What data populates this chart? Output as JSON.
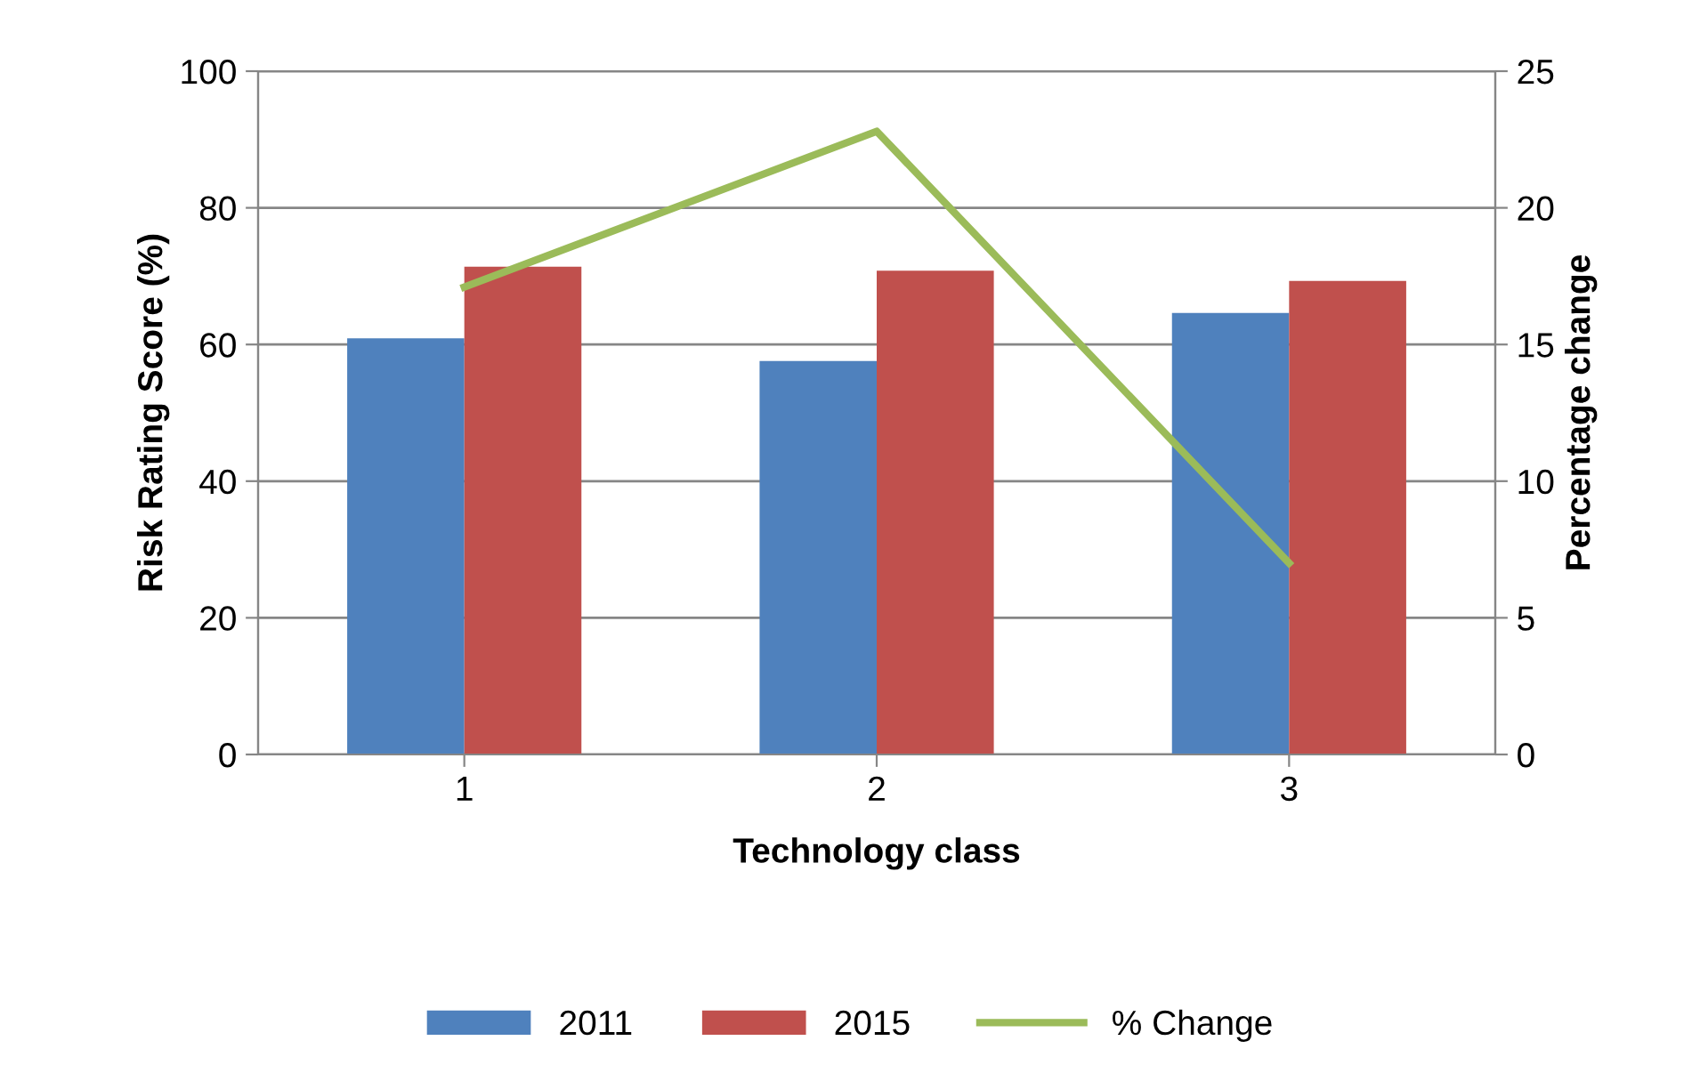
{
  "chart_data": {
    "type": "bar",
    "xlabel": "Technology class",
    "ylabel": "Risk Rating Score (%)",
    "y2label": "Percentage change",
    "categories": [
      "1",
      "2",
      "3"
    ],
    "series": [
      {
        "name": "2011",
        "color": "#4f81bd",
        "values": [
          60.9,
          57.6,
          64.6
        ]
      },
      {
        "name": "2015",
        "color": "#c0504d",
        "values": [
          71.4,
          70.8,
          69.3
        ]
      },
      {
        "name": "% Change",
        "type": "line",
        "axis": "y2",
        "color": "#9bbb59",
        "values": [
          17.1,
          22.8,
          7.0
        ]
      }
    ],
    "ylim": [
      0,
      100
    ],
    "yticks": [
      0,
      20,
      40,
      60,
      80,
      100
    ],
    "y2lim": [
      0,
      25
    ],
    "y2ticks": [
      0,
      5,
      10,
      15,
      20,
      25
    ],
    "grid": "y",
    "legend": "bottom"
  }
}
